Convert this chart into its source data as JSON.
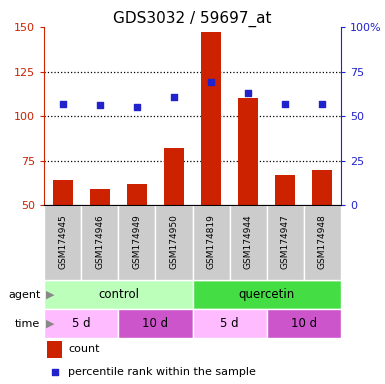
{
  "title": "GDS3032 / 59697_at",
  "samples": [
    "GSM174945",
    "GSM174946",
    "GSM174949",
    "GSM174950",
    "GSM174819",
    "GSM174944",
    "GSM174947",
    "GSM174948"
  ],
  "counts": [
    64,
    59,
    62,
    82,
    147,
    110,
    67,
    70
  ],
  "percentile_ranks": [
    107,
    106,
    105,
    111,
    119,
    113,
    107,
    107
  ],
  "bar_color": "#cc2200",
  "dot_color": "#2222cc",
  "left_ylim": [
    50,
    150
  ],
  "left_yticks": [
    50,
    75,
    100,
    125,
    150
  ],
  "right_ylim": [
    0,
    100
  ],
  "right_yticks": [
    0,
    25,
    50,
    75,
    100
  ],
  "right_yticklabels": [
    "0",
    "25",
    "50",
    "75",
    "100%"
  ],
  "agent_groups": [
    {
      "label": "control",
      "color": "#bbffbb",
      "start": 0,
      "end": 4
    },
    {
      "label": "quercetin",
      "color": "#44dd44",
      "start": 4,
      "end": 8
    }
  ],
  "time_groups": [
    {
      "label": "5 d",
      "color": "#ffbbff",
      "start": 0,
      "end": 2
    },
    {
      "label": "10 d",
      "color": "#cc55cc",
      "start": 2,
      "end": 4
    },
    {
      "label": "5 d",
      "color": "#ffbbff",
      "start": 4,
      "end": 6
    },
    {
      "label": "10 d",
      "color": "#cc55cc",
      "start": 6,
      "end": 8
    }
  ],
  "label_row_color": "#cccccc",
  "legend_count_color": "#cc2200",
  "legend_pct_color": "#2222cc",
  "title_fontsize": 11,
  "tick_fontsize": 8,
  "bar_width": 0.55,
  "dot_size": 22
}
